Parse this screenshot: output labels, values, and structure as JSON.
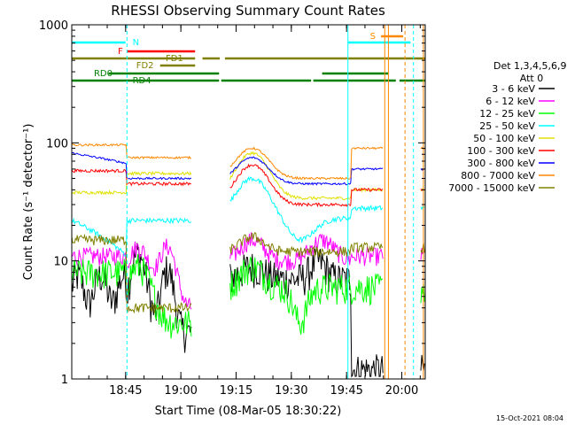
{
  "chart_data": {
    "type": "line",
    "title": "RHESSI Observing Summary Count Rates",
    "xlabel": "Start Time (08-Mar-05 18:30:22)",
    "ylabel": "Count Rate (s⁻¹ detector⁻¹)",
    "y_scale": "log",
    "ylim": [
      1,
      1000
    ],
    "xlim_minutes_after_start": [
      0,
      96
    ],
    "x_tick_labels": [
      "18:45",
      "19:00",
      "19:15",
      "19:30",
      "19:45",
      "20:00"
    ],
    "x_tick_minutes_after_start": [
      14.63,
      29.63,
      44.63,
      59.63,
      74.63,
      89.63
    ],
    "y_tick_labels": [
      "1",
      "10",
      "100",
      "1000"
    ],
    "y_tick_values": [
      1,
      10,
      100,
      1000
    ],
    "legend_title": [
      "Det 1,3,4,5,6,9,",
      "Att 0"
    ],
    "legend_position": "right",
    "series": [
      {
        "name": "3 - 6 keV",
        "color": "#000000"
      },
      {
        "name": "6 - 12 keV",
        "color": "#ff00ff"
      },
      {
        "name": "12 - 25 keV",
        "color": "#00ff00"
      },
      {
        "name": "25 - 50 keV",
        "color": "#00ffff"
      },
      {
        "name": "50 - 100 keV",
        "color": "#e0e000"
      },
      {
        "name": "100 - 300 keV",
        "color": "#ff0000"
      },
      {
        "name": "300 - 800 keV",
        "color": "#0000ff"
      },
      {
        "name": "800 - 7000 keV",
        "color": "#ff8800"
      },
      {
        "name": "7000 - 15000 keV",
        "color": "#808000"
      }
    ],
    "flag_labels": [
      {
        "text": "N",
        "color": "#00ffff"
      },
      {
        "text": "F",
        "color": "#ff0000"
      },
      {
        "text": "FD1",
        "color": "#808000"
      },
      {
        "text": "FD2",
        "color": "#808000"
      },
      {
        "text": "RD0",
        "color": "#008000"
      },
      {
        "text": "RD4",
        "color": "#008000"
      },
      {
        "text": "S",
        "color": "#ff8800"
      }
    ],
    "timestamp": "15-Oct-2021 08:04"
  }
}
